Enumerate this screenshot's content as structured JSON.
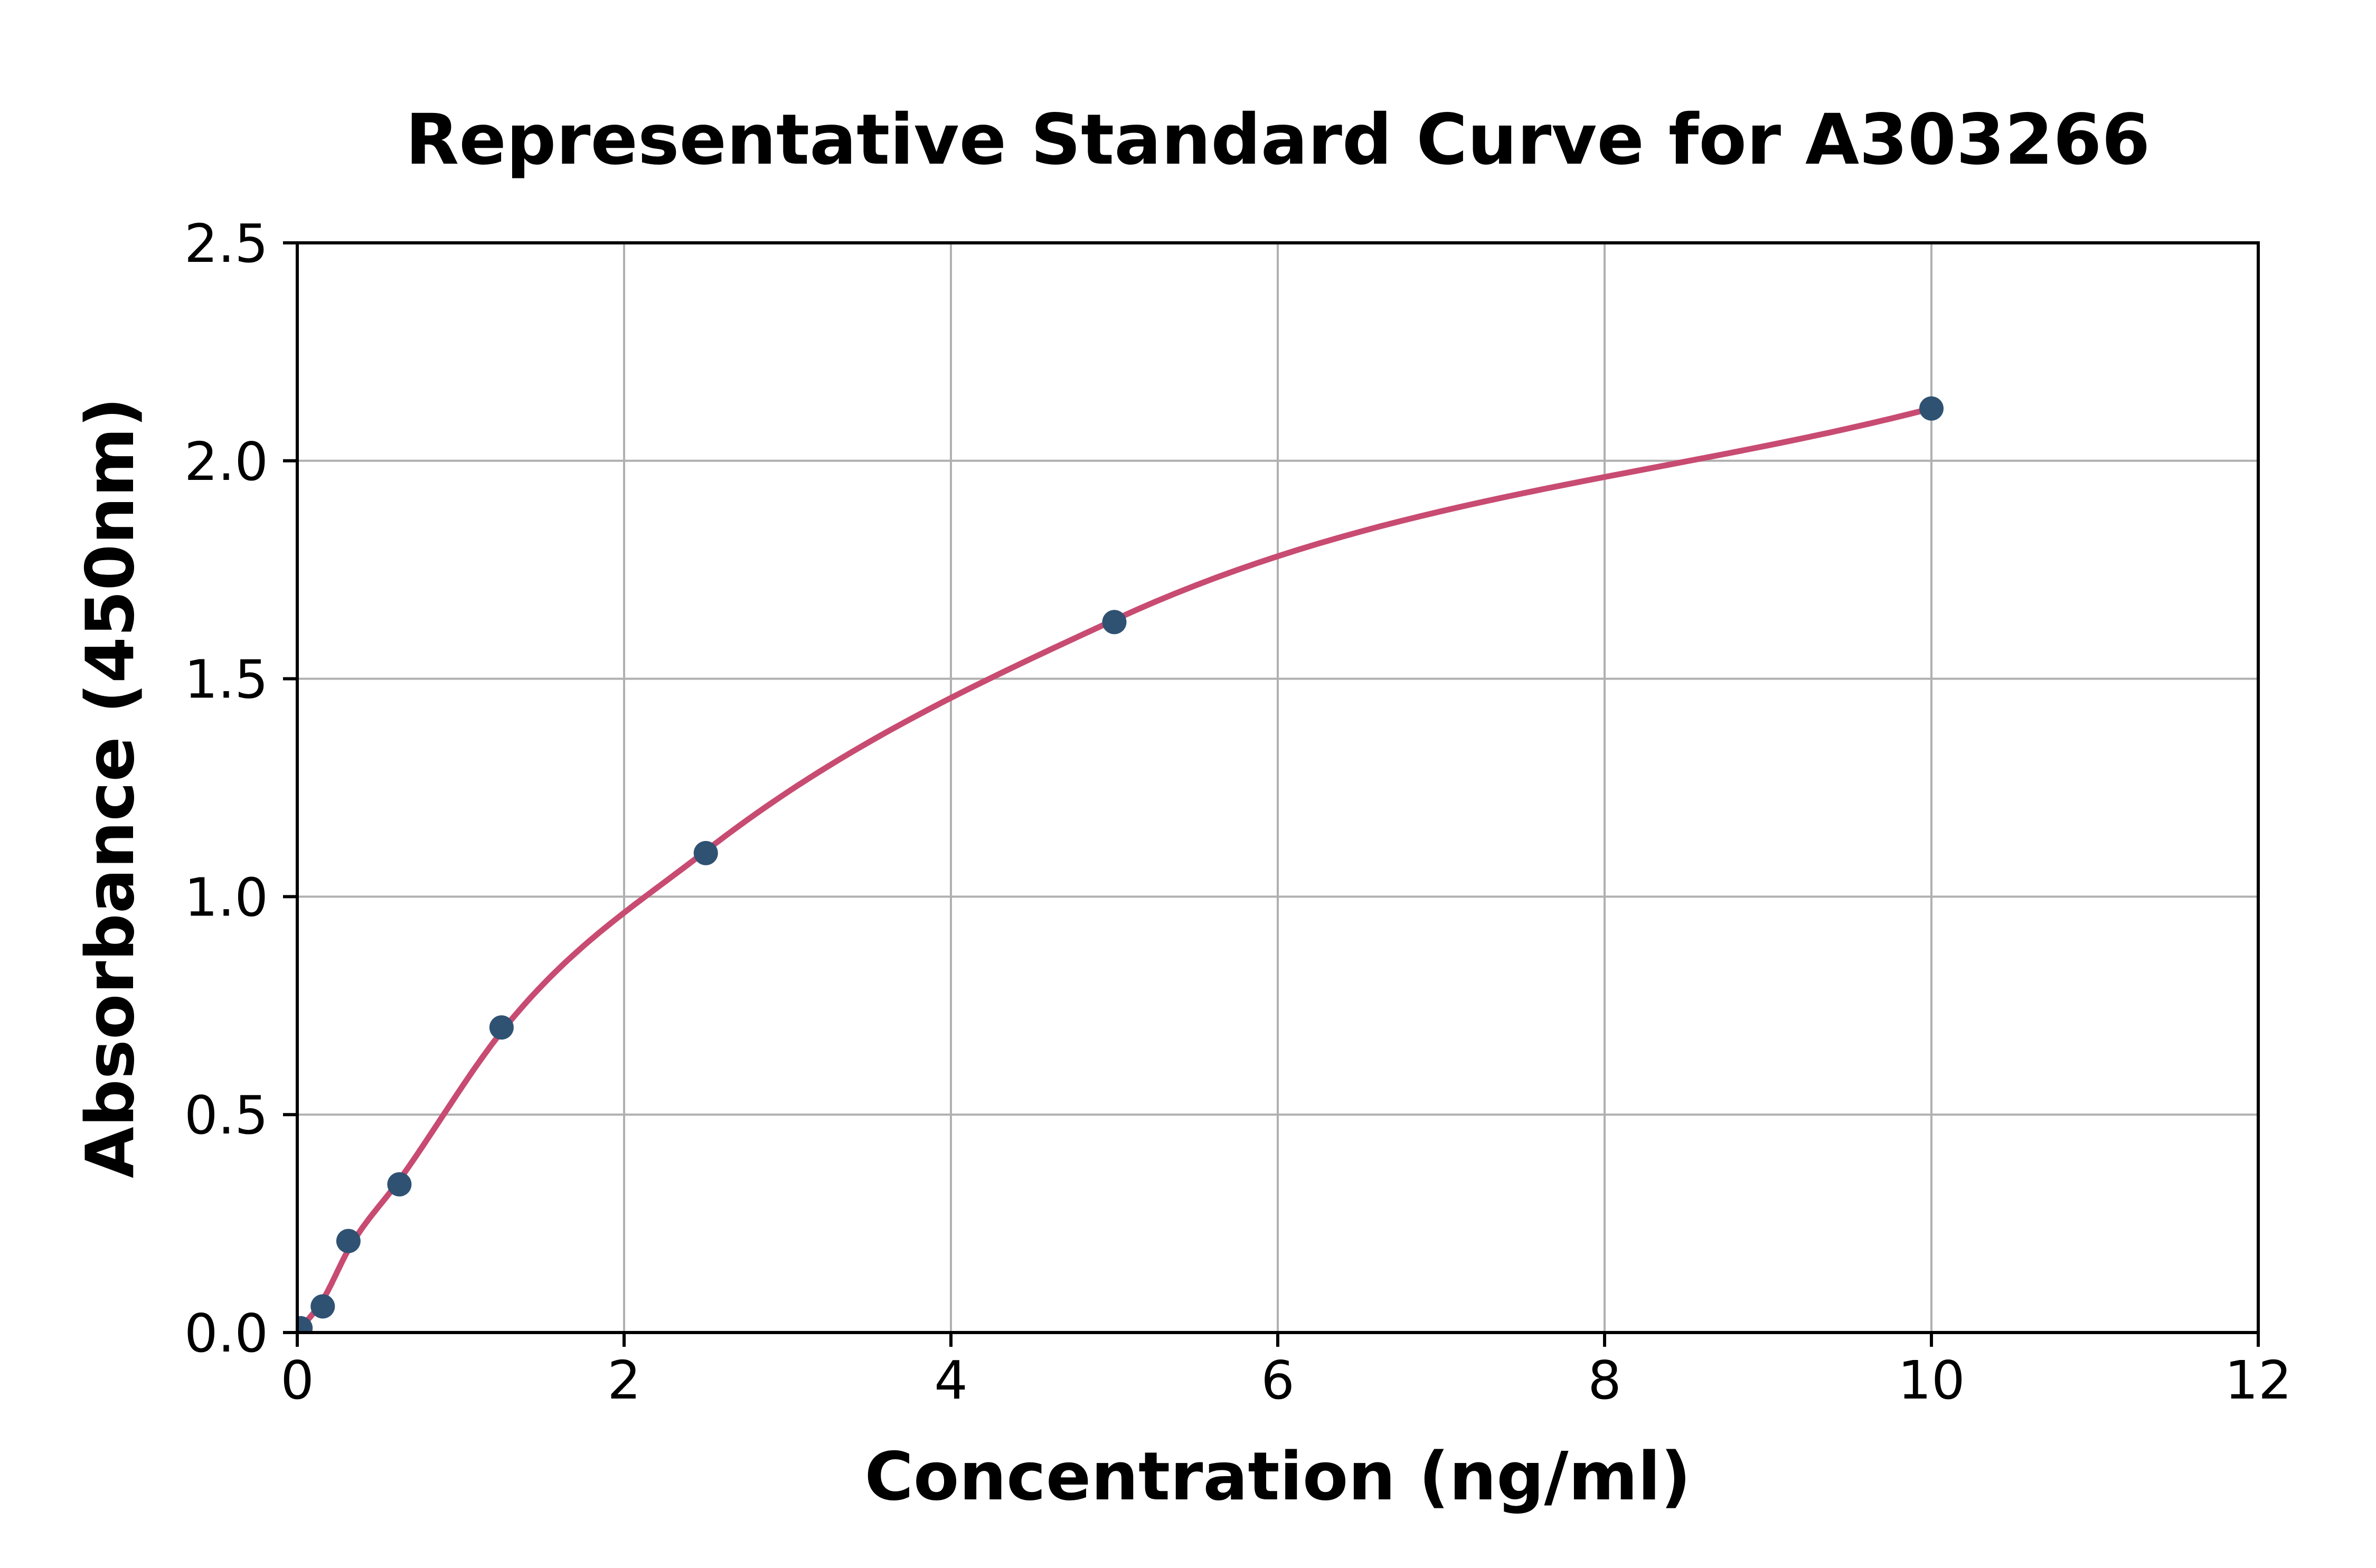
{
  "page": {
    "background": "#ffffff"
  },
  "chart_data": {
    "type": "scatter",
    "title": "Representative Standard Curve for A303266",
    "xlabel": "Concentration (ng/ml)",
    "ylabel": "Absorbance (450nm)",
    "xlim": [
      0,
      12
    ],
    "ylim": [
      0,
      2.5
    ],
    "grid": "on",
    "legend": "none",
    "xticks": [
      {
        "value": 0,
        "label": "0"
      },
      {
        "value": 2,
        "label": "2"
      },
      {
        "value": 4,
        "label": "4"
      },
      {
        "value": 6,
        "label": "6"
      },
      {
        "value": 8,
        "label": "8"
      },
      {
        "value": 10,
        "label": "10"
      },
      {
        "value": 12,
        "label": "12"
      }
    ],
    "yticks": [
      {
        "value": 0.0,
        "label": "0.0"
      },
      {
        "value": 0.5,
        "label": "0.5"
      },
      {
        "value": 1.0,
        "label": "1.0"
      },
      {
        "value": 1.5,
        "label": "1.5"
      },
      {
        "value": 2.0,
        "label": "2.0"
      },
      {
        "value": 2.5,
        "label": "2.5"
      }
    ],
    "series": [
      {
        "name": "standard-points",
        "kind": "scatter",
        "points": [
          {
            "x": 0.02,
            "y": 0.01
          },
          {
            "x": 0.156,
            "y": 0.06
          },
          {
            "x": 0.313,
            "y": 0.21
          },
          {
            "x": 0.625,
            "y": 0.34
          },
          {
            "x": 1.25,
            "y": 0.7
          },
          {
            "x": 2.5,
            "y": 1.1
          },
          {
            "x": 5.0,
            "y": 1.63
          },
          {
            "x": 10.0,
            "y": 2.12
          }
        ]
      },
      {
        "name": "fitted-curve",
        "kind": "smooth-line",
        "points": [
          {
            "x": 0.0,
            "y": 0.0
          },
          {
            "x": 0.156,
            "y": 0.075
          },
          {
            "x": 0.313,
            "y": 0.19
          },
          {
            "x": 0.625,
            "y": 0.35
          },
          {
            "x": 1.25,
            "y": 0.69
          },
          {
            "x": 2.5,
            "y": 1.105
          },
          {
            "x": 5.0,
            "y": 1.635
          },
          {
            "x": 10.0,
            "y": 2.12
          }
        ]
      }
    ],
    "style": {
      "point_color": "#2f5273",
      "curve_color": "#c84b72",
      "grid_color": "#b0b0b0",
      "axis_color": "#000000",
      "background": "#ffffff"
    }
  }
}
